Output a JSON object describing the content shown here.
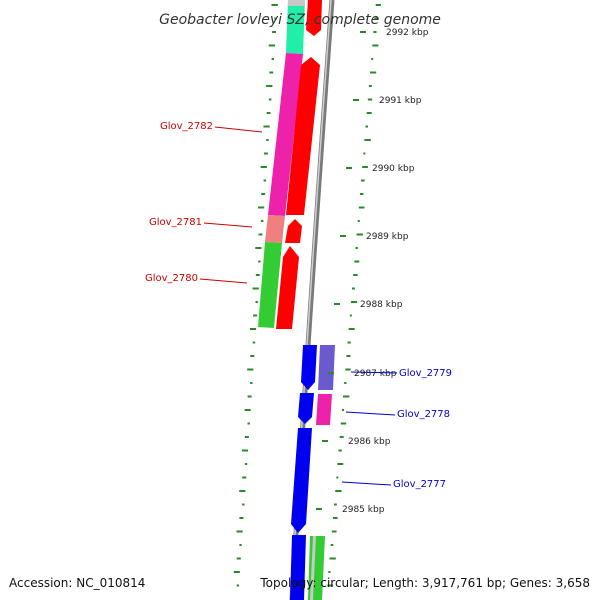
{
  "title": "Geobacter lovleyi SZ, complete genome",
  "accession": "Accession: NC_010814",
  "topology": "Topology: circular; Length: 3,917,761 bp; Genes: 3,658",
  "ticks": [
    "2992 kbp",
    "2991 kbp",
    "2990 kbp",
    "2989 kbp",
    "2988 kbp",
    "2987 kbp",
    "2986 kbp",
    "2985 kbp"
  ],
  "genes": [
    {
      "name": "Glov_2782",
      "strand": "reverse",
      "color": "#cc0000"
    },
    {
      "name": "Glov_2781",
      "strand": "reverse",
      "color": "#cc0000"
    },
    {
      "name": "Glov_2780",
      "strand": "reverse",
      "color": "#cc0000"
    },
    {
      "name": "Glov_2779",
      "strand": "forward",
      "color": "#0000cc"
    },
    {
      "name": "Glov_2778",
      "strand": "forward",
      "color": "#0000cc"
    },
    {
      "name": "Glov_2777",
      "strand": "forward",
      "color": "#0000cc"
    }
  ],
  "colors": {
    "reverse_strand": "#ff0000",
    "forward_strand": "#0000ff",
    "backbone": "#808080",
    "gc_skew": "#2a8a2a",
    "cog_magenta": "#ee22aa",
    "cog_green": "#33cc33",
    "cog_salmon": "#f08080",
    "cog_cyan": "#22eeaa",
    "cog_purple": "#6a5acd"
  }
}
